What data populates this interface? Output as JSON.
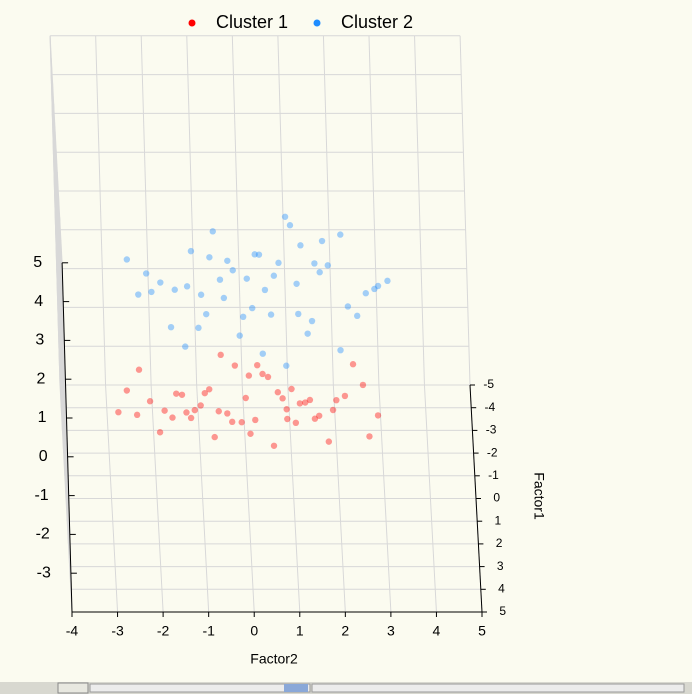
{
  "chart_data": {
    "type": "scatter3d",
    "xlabel": "Factor2",
    "ylabel": "Factor1",
    "xlim": [
      -4,
      5
    ],
    "xticks": [
      -4,
      -3,
      -2,
      -1,
      0,
      1,
      2,
      3,
      4,
      5
    ],
    "ylim": [
      -5,
      5
    ],
    "yticks": [
      -5,
      -4,
      -3,
      -2,
      -1,
      0,
      1,
      2,
      3,
      4,
      5
    ],
    "zlim": [
      -4,
      5
    ],
    "zticks": [
      -3,
      -2,
      -1,
      0,
      1,
      2,
      3,
      4,
      5
    ],
    "grid": true,
    "legend": "top",
    "series": [
      {
        "name": "Cluster 1",
        "color": "#ff0000",
        "x": [
          -2.1,
          -1.5,
          -0.8,
          0.2,
          1.1,
          1.9,
          2.6,
          -2.6,
          -1.1,
          0.5,
          1.5,
          -0.3,
          0.9,
          -1.8,
          2.2,
          -0.6,
          0.1,
          1.3,
          -1.3,
          0.7,
          -2.3,
          1.8,
          -0.9,
          0.4,
          2.9,
          -1.6,
          0.0,
          1.0,
          -0.4,
          -2.8,
          2.4,
          -1.0,
          0.6,
          1.6,
          -0.2,
          -1.9,
          0.8,
          2.0,
          -0.7,
          0.3,
          -1.4,
          1.2,
          -2.4,
          2.7,
          -0.5,
          0.9,
          -1.2,
          1.4,
          0.1,
          -0.1
        ],
        "y": [
          0.5,
          -1.2,
          1.0,
          0.3,
          -0.6,
          1.4,
          -0.9,
          0.2,
          -1.5,
          0.8,
          1.1,
          -0.3,
          0.0,
          1.6,
          -1.1,
          0.6,
          -0.8,
          0.9,
          -0.2,
          1.3,
          -1.4,
          0.4,
          1.0,
          -0.7,
          0.1,
          -1.0,
          0.7,
          1.5,
          -0.5,
          0.3,
          -1.3,
          1.2,
          -0.1,
          0.8,
          -0.9,
          0.5,
          1.4,
          -0.4,
          0.2,
          -1.6,
          0.9,
          -0.6,
          1.1,
          0.0,
          -1.2,
          0.6,
          -0.3,
          1.3,
          -0.8,
          0.4
        ],
        "z": [
          -1.2,
          -2.0,
          -0.6,
          -1.8,
          -2.4,
          -0.9,
          -1.6,
          -1.1,
          -2.6,
          -0.4,
          -1.3,
          -2.2,
          -1.7,
          -0.8,
          -2.0,
          -1.4,
          -2.8,
          -1.0,
          -1.9,
          -0.5,
          -1.5,
          -2.3,
          -0.7,
          -1.2,
          -1.8,
          -2.5,
          -1.0,
          -0.3,
          -2.1,
          -1.6,
          -1.3,
          -0.9,
          -2.7,
          -1.4,
          -1.1,
          -2.0,
          -0.6,
          -1.7,
          -2.3,
          -1.5,
          -0.8,
          -1.9,
          -1.2,
          -2.4,
          -1.0,
          -1.6,
          -2.1,
          -0.7,
          -1.3,
          -1.8
        ]
      },
      {
        "name": "Cluster 2",
        "color": "#1e8cff",
        "x": [
          -1.8,
          -1.2,
          -0.5,
          0.5,
          1.4,
          2.2,
          2.9,
          -2.3,
          -0.8,
          0.8,
          1.8,
          0.0,
          1.2,
          -1.5,
          2.5,
          -0.3,
          0.4,
          1.6,
          -1.0,
          1.0,
          -2.0,
          2.1,
          -0.6,
          0.7,
          3.2,
          -1.3,
          0.3,
          1.3,
          -0.1,
          -2.5,
          2.7,
          -0.7,
          0.9,
          1.9,
          0.1,
          -1.6,
          1.1,
          2.3,
          -0.4,
          0.6,
          -1.1,
          1.5,
          -2.1,
          3.0,
          -0.2,
          1.2,
          -0.9,
          1.7,
          0.4,
          0.2
        ],
        "y": [
          0.4,
          -0.8,
          1.3,
          -0.3,
          0.6,
          -1.2,
          0.0,
          1.1,
          -0.6,
          0.9,
          -1.6,
          0.2,
          -0.4,
          1.4,
          0.5,
          -0.9,
          0.8,
          -0.1,
          1.2,
          -1.3,
          0.3,
          1.5,
          -1.0,
          0.1,
          -0.7,
          1.0,
          -0.5,
          0.3,
          1.2,
          -1.3,
          0.7,
          -0.2,
          1.5,
          -0.7,
          0.4,
          1.0,
          -1.1,
          0.6,
          -0.8,
          1.3,
          -0.3,
          0.9,
          0.0,
          -1.5,
          0.2,
          1.1,
          -0.6,
          0.8,
          -1.0,
          0.5
        ],
        "z": [
          1.8,
          1.0,
          2.4,
          1.2,
          0.6,
          2.1,
          1.4,
          1.9,
          0.4,
          2.6,
          1.7,
          0.8,
          1.3,
          2.2,
          1.0,
          1.6,
          0.2,
          2.0,
          1.1,
          2.5,
          1.5,
          0.7,
          2.3,
          1.8,
          1.2,
          0.5,
          2.0,
          2.7,
          0.9,
          1.4,
          1.7,
          2.1,
          0.3,
          1.6,
          1.9,
          1.0,
          2.4,
          1.3,
          0.7,
          1.5,
          2.2,
          1.1,
          1.8,
          0.6,
          2.0,
          1.4,
          0.9,
          2.3,
          1.7,
          1.2
        ]
      }
    ]
  }
}
